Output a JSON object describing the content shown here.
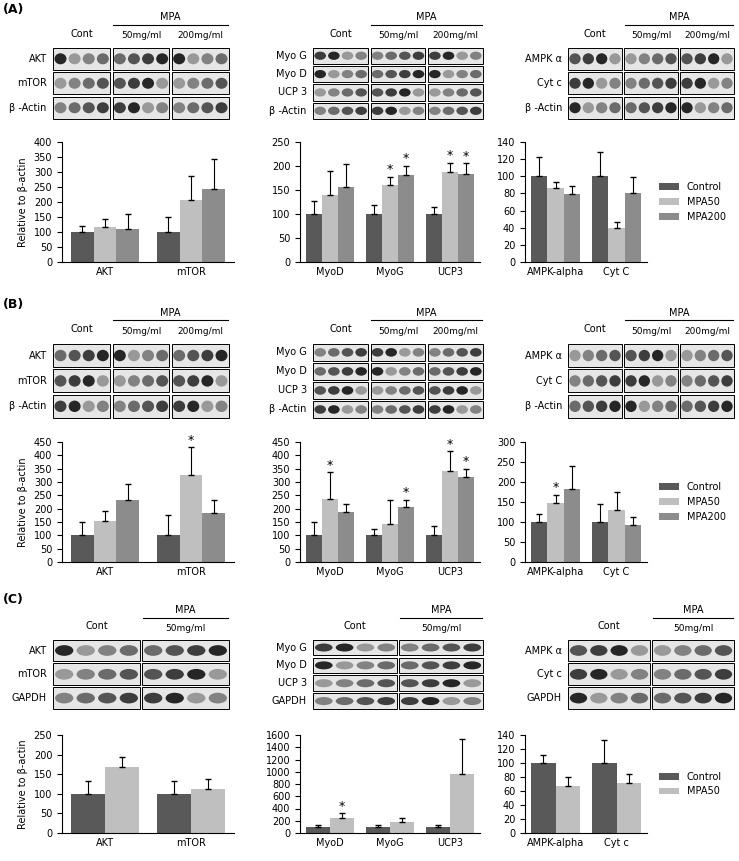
{
  "panel_labels": [
    "(A)",
    "(B)",
    "(C)"
  ],
  "blots": [
    [
      {
        "header": {
          "control": "Cont",
          "treatment": "MPA",
          "doses": [
            "50mg/ml",
            "200mg/ml"
          ]
        },
        "bands": [
          "AKT",
          "mTOR",
          "β -Actin"
        ]
      },
      {
        "header": {
          "control": "Cont",
          "treatment": "MPA",
          "doses": [
            "50mg/ml",
            "200mg/ml"
          ]
        },
        "bands": [
          "Myo G",
          "Myo D",
          "UCP 3",
          "β -Actin"
        ]
      },
      {
        "header": {
          "control": "Cont",
          "treatment": "MPA",
          "doses": [
            "50mg/ml",
            "200mg/ml"
          ]
        },
        "bands": [
          "AMPK α",
          "Cyt c",
          "β -Actin"
        ]
      }
    ],
    [
      {
        "header": {
          "control": "Cont",
          "treatment": "MPA",
          "doses": [
            "50mg/ml",
            "200mg/ml"
          ]
        },
        "bands": [
          "AKT",
          "mTOR",
          "β -Actin"
        ]
      },
      {
        "header": {
          "control": "Cont",
          "treatment": "MPA",
          "doses": [
            "50mg/ml",
            "200mg/ml"
          ]
        },
        "bands": [
          "Myo G",
          "Myo D",
          "UCP 3",
          "β -Actin"
        ]
      },
      {
        "header": {
          "control": "Cont",
          "treatment": "MPA",
          "doses": [
            "50mg/ml",
            "200mg/ml"
          ]
        },
        "bands": [
          "AMPK α",
          "Cyt C",
          "β -Actin"
        ]
      }
    ],
    [
      {
        "header": {
          "control": "Cont",
          "treatment": "MPA",
          "doses": [
            "50mg/ml"
          ]
        },
        "bands": [
          "AKT",
          "mTOR",
          "GAPDH"
        ]
      },
      {
        "header": {
          "control": "Cont",
          "treatment": "MPA",
          "doses": [
            "50mg/ml"
          ]
        },
        "bands": [
          "Myo G",
          "Myo D",
          "UCP 3",
          "GAPDH"
        ]
      },
      {
        "header": {
          "control": "Cont",
          "treatment": "MPA",
          "doses": [
            "50mg/ml"
          ]
        },
        "bands": [
          "AMPK α",
          "Cyt c",
          "GAPDH"
        ]
      }
    ]
  ],
  "chart_data": [
    {
      "type": "bar",
      "ylabel": "Relative to β-actin",
      "categories": [
        "AKT",
        "mTOR"
      ],
      "ylim": [
        0,
        400
      ],
      "yticks": [
        0,
        50,
        100,
        150,
        200,
        250,
        300,
        350,
        400
      ],
      "grid": false,
      "series": [
        {
          "color": "#595959",
          "values": [
            100,
            100
          ],
          "errors": [
            20,
            50
          ]
        },
        {
          "color": "#bfbfbf",
          "values": [
            118,
            208
          ],
          "errors": [
            25,
            78
          ]
        },
        {
          "color": "#8c8c8c",
          "values": [
            110,
            242
          ],
          "errors": [
            50,
            100
          ]
        }
      ]
    },
    {
      "type": "bar",
      "categories": [
        "MyoD",
        "MyoG",
        "UCP3"
      ],
      "ylim": [
        0,
        250
      ],
      "yticks": [
        0,
        50,
        100,
        150,
        200,
        250
      ],
      "grid": false,
      "significance_mark": "*",
      "series": [
        {
          "color": "#595959",
          "values": [
            100,
            100,
            100
          ],
          "errors": [
            28,
            18,
            15
          ],
          "significant": [
            false,
            false,
            false
          ]
        },
        {
          "color": "#bfbfbf",
          "values": [
            140,
            160,
            187
          ],
          "errors": [
            50,
            18,
            20
          ],
          "significant": [
            false,
            true,
            true
          ]
        },
        {
          "color": "#8c8c8c",
          "values": [
            157,
            181,
            184
          ],
          "errors": [
            48,
            20,
            22
          ],
          "significant": [
            false,
            true,
            true
          ]
        }
      ]
    },
    {
      "type": "bar",
      "categories": [
        "AMPK-alpha",
        "Cyt C"
      ],
      "ylim": [
        0,
        140
      ],
      "yticks": [
        0,
        20,
        40,
        60,
        80,
        100,
        120,
        140
      ],
      "grid": false,
      "legend": "center left",
      "series": [
        {
          "name": "Control",
          "color": "#595959",
          "values": [
            100,
            100
          ],
          "errors": [
            22,
            28
          ]
        },
        {
          "name": "MPA50",
          "color": "#bfbfbf",
          "values": [
            86,
            40
          ],
          "errors": [
            7,
            7
          ]
        },
        {
          "name": "MPA200",
          "color": "#8c8c8c",
          "values": [
            79,
            81
          ],
          "errors": [
            10,
            18
          ]
        }
      ]
    },
    {
      "type": "bar",
      "ylabel": "Relative to β-actin",
      "categories": [
        "AKT",
        "mTOR"
      ],
      "ylim": [
        0,
        450
      ],
      "yticks": [
        0,
        50,
        100,
        150,
        200,
        250,
        300,
        350,
        400,
        450
      ],
      "grid": false,
      "significance_mark": "*",
      "series": [
        {
          "color": "#595959",
          "values": [
            100,
            100
          ],
          "errors": [
            50,
            78
          ],
          "significant": [
            false,
            false
          ]
        },
        {
          "color": "#bfbfbf",
          "values": [
            153,
            325
          ],
          "errors": [
            40,
            105
          ],
          "significant": [
            false,
            true
          ]
        },
        {
          "color": "#8c8c8c",
          "values": [
            233,
            185
          ],
          "errors": [
            60,
            47
          ],
          "significant": [
            false,
            false
          ]
        }
      ]
    },
    {
      "type": "bar",
      "categories": [
        "MyoD",
        "MyoG",
        "UCP3"
      ],
      "ylim": [
        0,
        450
      ],
      "yticks": [
        0,
        50,
        100,
        150,
        200,
        250,
        300,
        350,
        400,
        450
      ],
      "grid": false,
      "significance_mark": "*",
      "series": [
        {
          "color": "#595959",
          "values": [
            100,
            100,
            100
          ],
          "errors": [
            50,
            25,
            35
          ],
          "significant": [
            false,
            false,
            false
          ]
        },
        {
          "color": "#bfbfbf",
          "values": [
            237,
            143,
            340
          ],
          "errors": [
            100,
            88,
            75
          ],
          "significant": [
            true,
            false,
            true
          ]
        },
        {
          "color": "#8c8c8c",
          "values": [
            188,
            208,
            320
          ],
          "errors": [
            30,
            25,
            30
          ],
          "significant": [
            false,
            true,
            true
          ]
        }
      ]
    },
    {
      "type": "bar",
      "categories": [
        "AMPK-alpha",
        "Cyt C"
      ],
      "ylim": [
        0,
        300
      ],
      "yticks": [
        0,
        50,
        100,
        150,
        200,
        250,
        300
      ],
      "grid": false,
      "legend": "center left",
      "significance_mark": "*",
      "series": [
        {
          "name": "Control",
          "color": "#595959",
          "values": [
            100,
            100
          ],
          "errors": [
            20,
            45
          ],
          "significant": [
            false,
            false
          ]
        },
        {
          "name": "MPA50",
          "color": "#bfbfbf",
          "values": [
            148,
            130
          ],
          "errors": [
            20,
            45
          ],
          "significant": [
            true,
            false
          ]
        },
        {
          "name": "MPA200",
          "color": "#8c8c8c",
          "values": [
            182,
            92
          ],
          "errors": [
            58,
            20
          ],
          "significant": [
            false,
            false
          ]
        }
      ]
    },
    {
      "type": "bar",
      "ylabel": "Relative to β-actin",
      "categories": [
        "AKT",
        "mTOR"
      ],
      "ylim": [
        0,
        250
      ],
      "yticks": [
        0,
        50,
        100,
        150,
        200,
        250
      ],
      "grid": false,
      "series": [
        {
          "color": "#595959",
          "values": [
            100,
            100
          ],
          "errors": [
            32,
            33
          ]
        },
        {
          "color": "#bfbfbf",
          "values": [
            168,
            113
          ],
          "errors": [
            25,
            25
          ]
        }
      ]
    },
    {
      "type": "bar",
      "categories": [
        "MyoD",
        "MyoG",
        "UCP3"
      ],
      "ylim": [
        0,
        1600
      ],
      "yticks": [
        0,
        200,
        400,
        600,
        800,
        1000,
        1200,
        1400,
        1600
      ],
      "grid": false,
      "significance_mark": "*",
      "series": [
        {
          "color": "#595959",
          "values": [
            100,
            100,
            100
          ],
          "errors": [
            30,
            30,
            35
          ],
          "significant": [
            false,
            false,
            false
          ]
        },
        {
          "color": "#bfbfbf",
          "values": [
            250,
            175,
            960
          ],
          "errors": [
            70,
            75,
            580
          ],
          "significant": [
            true,
            false,
            false
          ]
        }
      ]
    },
    {
      "type": "bar",
      "categories": [
        "AMPK-alpha",
        "Cyt c"
      ],
      "ylim": [
        0,
        140
      ],
      "yticks": [
        0,
        20,
        40,
        60,
        80,
        100,
        120,
        140
      ],
      "grid": false,
      "legend": "center left",
      "series": [
        {
          "name": "Control",
          "color": "#595959",
          "values": [
            100,
            100
          ],
          "errors": [
            12,
            33
          ]
        },
        {
          "name": "MPA50",
          "color": "#bfbfbf",
          "values": [
            67,
            71
          ],
          "errors": [
            13,
            13
          ]
        }
      ]
    }
  ]
}
